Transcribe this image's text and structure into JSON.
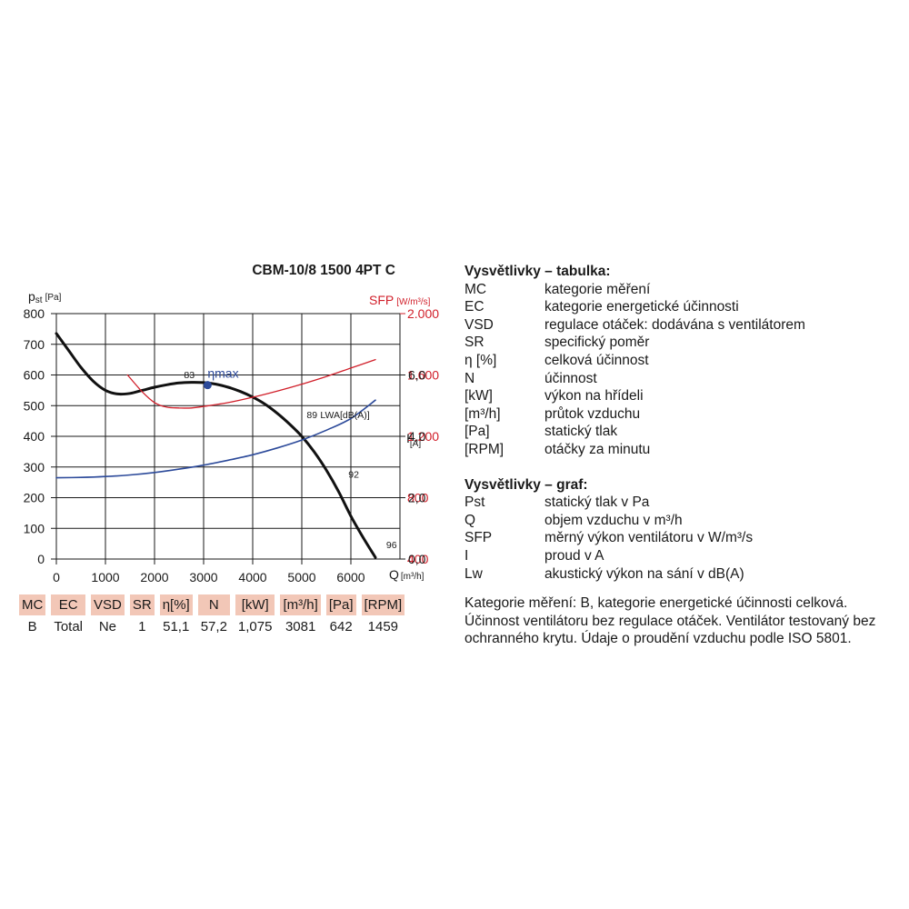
{
  "chart_data": {
    "type": "line",
    "title": "CBM-10/8 1500 4PT C",
    "y_left_label": "p",
    "y_left_label_sub": "st",
    "y_left_unit": "[Pa]",
    "y_right_sfp_label": "SFP",
    "y_right_sfp_unit": "[W/m³/s]",
    "y_right_current_label": "I",
    "y_right_current_unit": "[A]",
    "x_label": "Q",
    "x_unit": "[m³/h]",
    "xlim": [
      0,
      7000
    ],
    "ylim_pressure": [
      0,
      800
    ],
    "ylim_sfp": [
      400,
      2000
    ],
    "ylim_current": [
      0,
      8
    ],
    "x_ticks": [
      "0",
      "1000",
      "2000",
      "3000",
      "4000",
      "5000",
      "6000"
    ],
    "y_left_ticks": [
      "0",
      "100",
      "200",
      "300",
      "400",
      "500",
      "600",
      "700",
      "800"
    ],
    "y_right_sfp_ticks": [
      "400",
      "800",
      "1.200",
      "1.600",
      "2.000"
    ],
    "y_right_current_ticks": [
      "0,0",
      "2,0",
      "4,0",
      "6,0"
    ],
    "colors": {
      "pressure": "#111111",
      "sfp": "#d11f2a",
      "current": "#2c4a9a",
      "grid": "#1a1a1a"
    },
    "series": [
      {
        "name": "pst",
        "axis": "pressure",
        "x": [
          0,
          250,
          500,
          750,
          1000,
          1250,
          1500,
          1750,
          2000,
          2250,
          2500,
          2750,
          3000,
          3250,
          3500,
          3750,
          4000,
          4250,
          4500,
          4750,
          5000,
          5250,
          5500,
          5750,
          6000,
          6250,
          6500
        ],
        "y": [
          735,
          680,
          625,
          580,
          550,
          538,
          540,
          550,
          560,
          568,
          574,
          576,
          575,
          570,
          560,
          546,
          528,
          505,
          475,
          440,
          400,
          350,
          290,
          220,
          140,
          70,
          5
        ]
      },
      {
        "name": "SFP",
        "axis": "sfp",
        "x": [
          1450,
          1750,
          2000,
          2250,
          2500,
          2750,
          3000,
          3500,
          4000,
          4500,
          5000,
          5500,
          6000,
          6500
        ],
        "y": [
          1600,
          1490,
          1420,
          1390,
          1385,
          1385,
          1395,
          1420,
          1455,
          1495,
          1540,
          1590,
          1645,
          1700
        ]
      },
      {
        "name": "I",
        "axis": "current",
        "x": [
          0,
          500,
          1000,
          1500,
          2000,
          2500,
          3000,
          3500,
          4000,
          4500,
          5000,
          5500,
          6000,
          6500
        ],
        "y": [
          2.65,
          2.66,
          2.69,
          2.74,
          2.82,
          2.93,
          3.06,
          3.22,
          3.4,
          3.62,
          3.88,
          4.2,
          4.58,
          5.18
        ]
      }
    ],
    "annotations": {
      "eta_max_point": {
        "x": 3081,
        "y": 567,
        "label": "ηmax"
      },
      "lwa_83": {
        "text": "83",
        "x": 2600,
        "y": 590
      },
      "lwa_89": {
        "text": "89",
        "x": 5100,
        "y": 460
      },
      "lwa_89_label": "L",
      "lwa_89_label_sub": "WA",
      "lwa_89_unit": "[dB(A)]",
      "lwa_92": {
        "text": "92",
        "x": 5950,
        "y": 265
      },
      "lwa_96": {
        "text": "96",
        "x": 6720,
        "y": 35
      }
    }
  },
  "table": {
    "headers": [
      "MC",
      "EC",
      "VSD",
      "SR",
      "η[%]",
      "N",
      "[kW]",
      "[m³/h]",
      "[Pa]",
      "[RPM]"
    ],
    "values": [
      "B",
      "Total",
      "Ne",
      "1",
      "51,1",
      "57,2",
      "1,075",
      "3081",
      "642",
      "1459"
    ]
  },
  "legend": {
    "table_title": "Vysvětlivky – tabulka:",
    "table_items": [
      {
        "key": "MC",
        "value": "kategorie měření"
      },
      {
        "key": "EC",
        "value": "kategorie energetické účinnosti"
      },
      {
        "key": "VSD",
        "value": "regulace otáček: dodávána s ventilátorem"
      },
      {
        "key": "SR",
        "value": "specifický poměr"
      },
      {
        "key": "η [%]",
        "value": "celková účinnost"
      },
      {
        "key": "N",
        "value": "účinnost"
      },
      {
        "key": "[kW]",
        "value": "výkon na hřídeli"
      },
      {
        "key": "[m³/h]",
        "value": "průtok vzduchu"
      },
      {
        "key": "[Pa]",
        "value": "statický tlak"
      },
      {
        "key": "[RPM]",
        "value": "otáčky za minutu"
      }
    ],
    "graph_title": "Vysvětlivky – graf:",
    "graph_items": [
      {
        "key": "Pst",
        "value": "statický tlak v Pa"
      },
      {
        "key": "Q",
        "value": "objem vzduchu v m³/h"
      },
      {
        "key": "SFP",
        "value": "měrný výkon ventilátoru v W/m³/s"
      },
      {
        "key": "I",
        "value": "proud v A"
      },
      {
        "key": "Lw",
        "value": "akustický výkon na sání v dB(A)"
      }
    ],
    "note": "Kategorie měření: B, kategorie energetické účinnosti celková. Účinnost ventilátoru bez regulace otáček. Ventilátor testovaný bez ochranného krytu. Údaje o proudění vzduchu podle ISO 5801."
  }
}
